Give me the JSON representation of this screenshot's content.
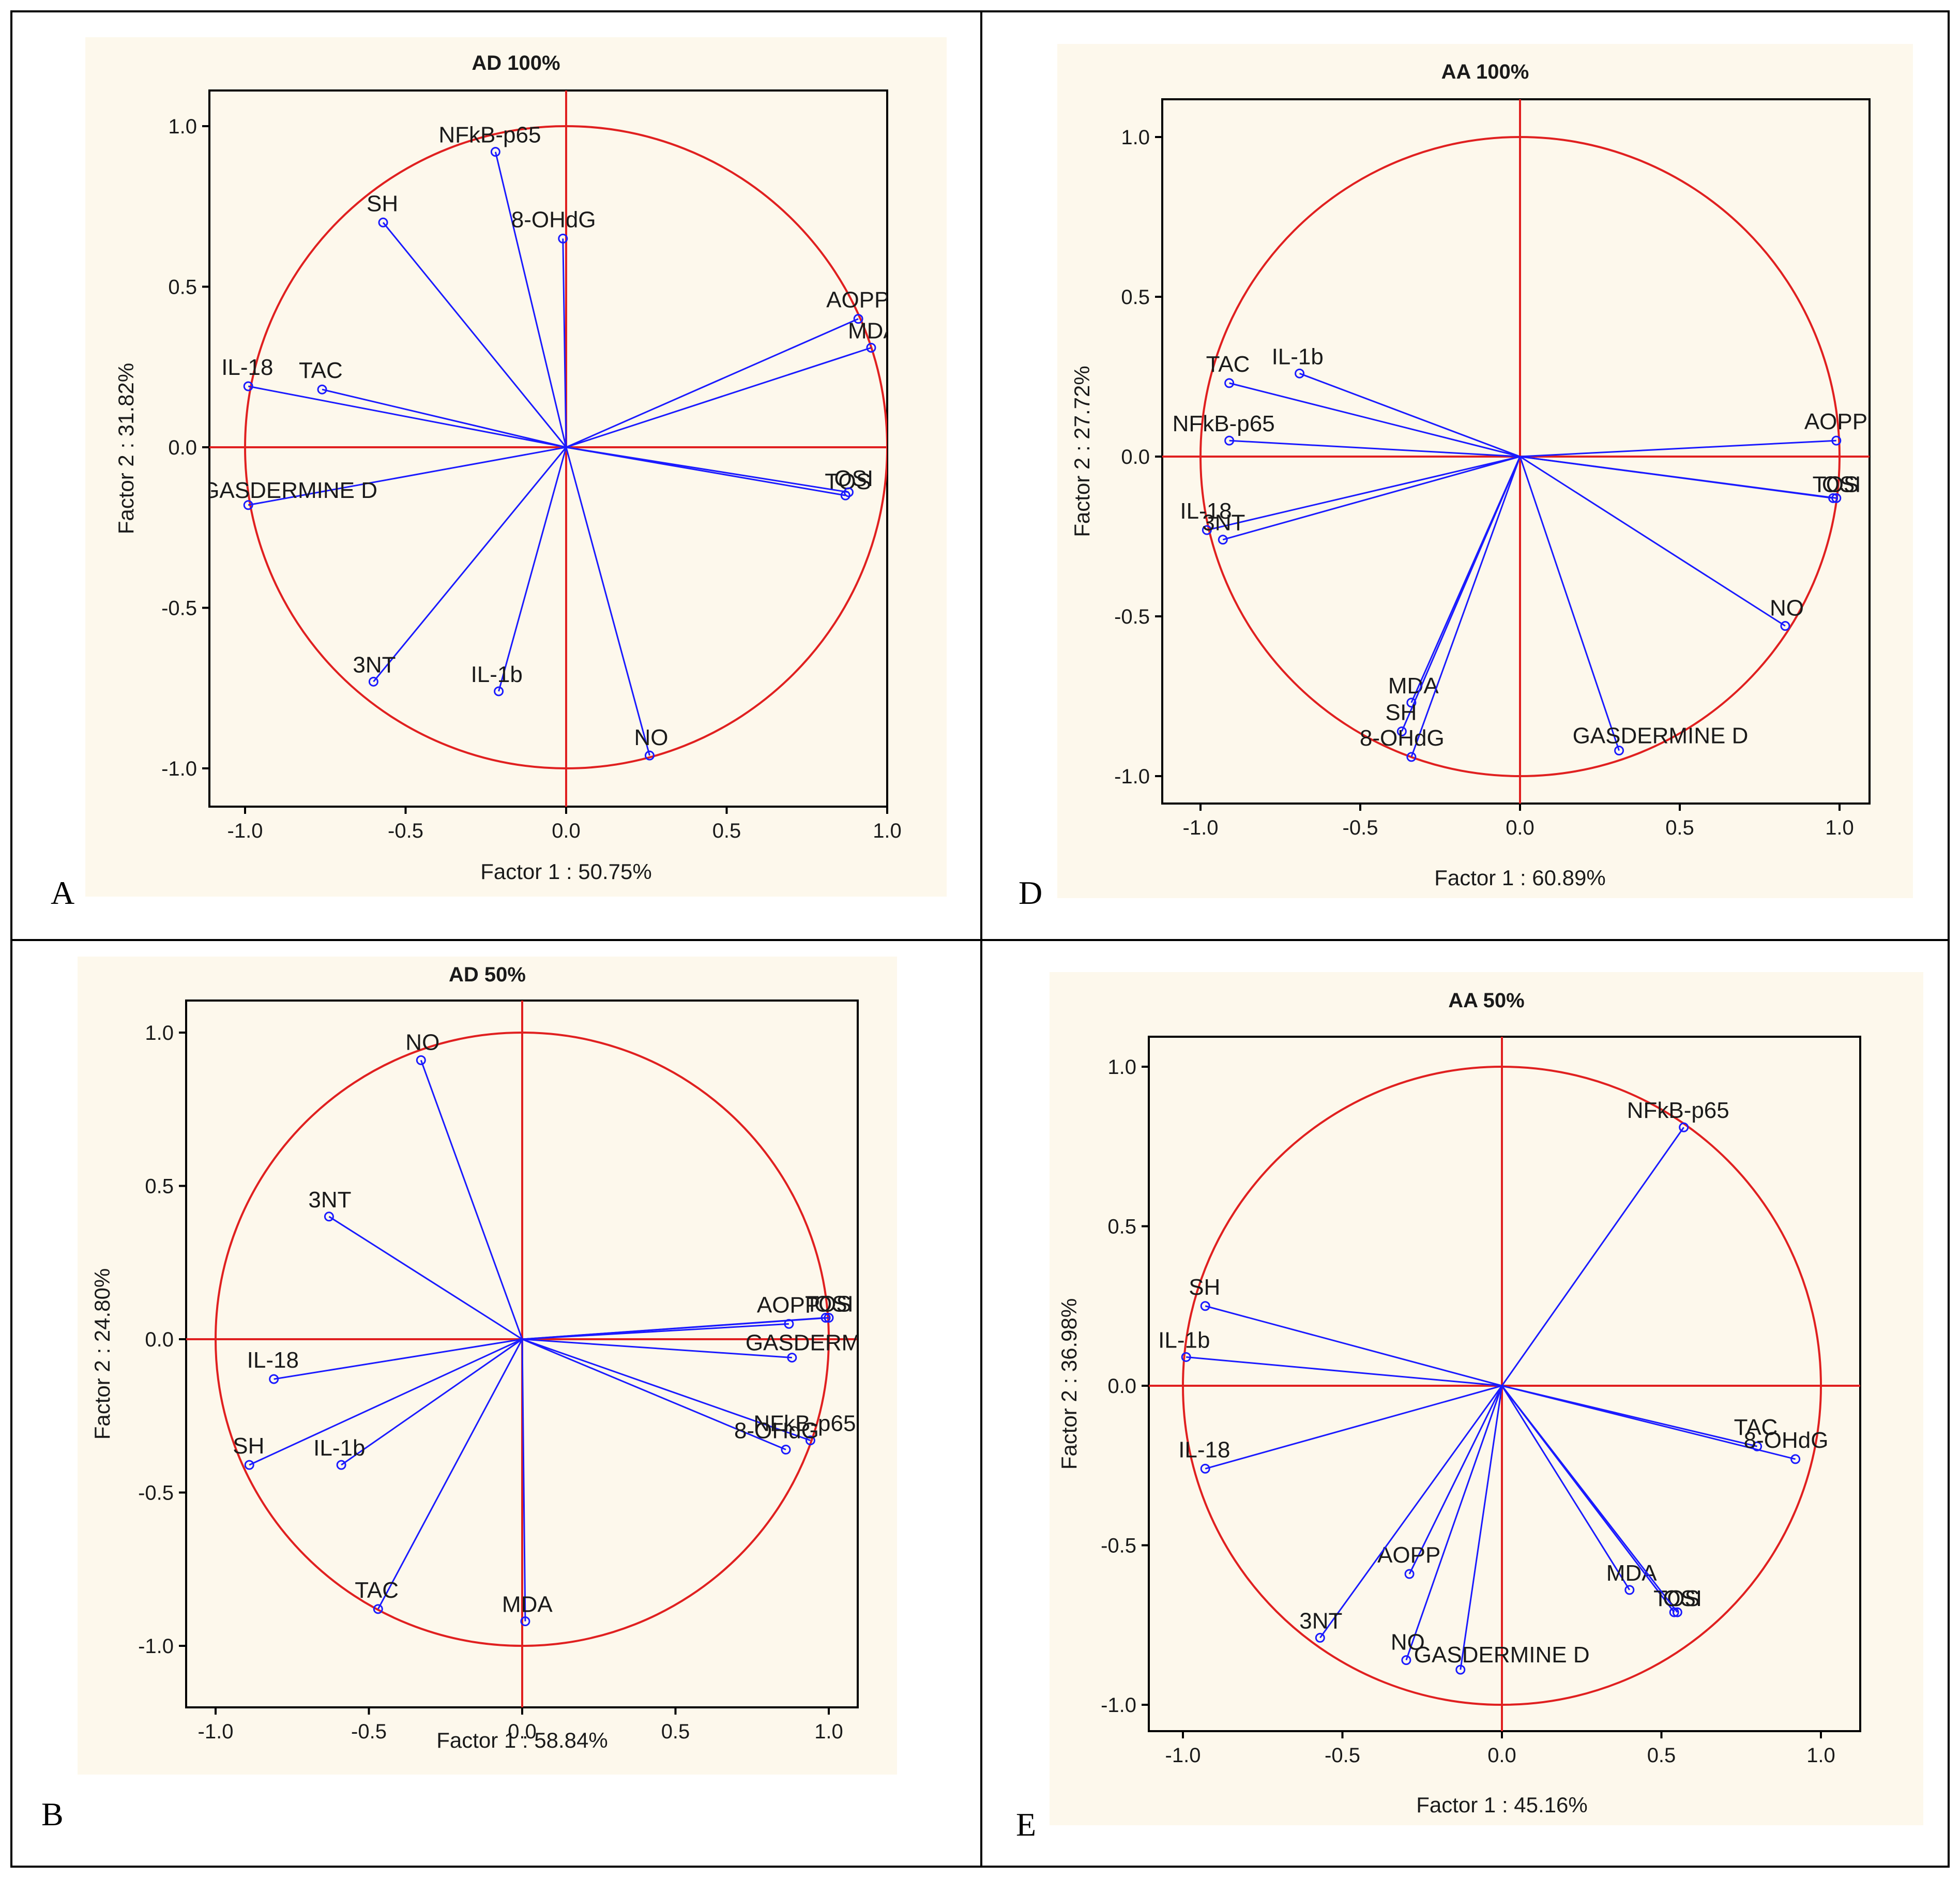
{
  "colors": {
    "background": "#fdf8ec",
    "circle": "#e02020",
    "axes": "#e02020",
    "vector": "#1a1aff",
    "frame": "#000000"
  },
  "chart_data": [
    {
      "panel_letter": "A",
      "type": "scatter",
      "title": "AD 100%",
      "xlabel": "Factor 1 : 50.75%",
      "ylabel": "Factor 2 : 31.82%",
      "xlim": [
        -1.1,
        1.1
      ],
      "ylim": [
        -1.1,
        1.1
      ],
      "x_ticks": [
        -1.0,
        -0.5,
        0.0,
        0.5,
        1.0
      ],
      "x_tick_labels": [
        "-1.0",
        "-0.5",
        "0.0",
        "0.5",
        "1.0"
      ],
      "y_ticks": [
        1.0,
        0.5,
        0.0,
        -0.5,
        -1.0
      ],
      "y_tick_labels": [
        "1.0",
        "0.5",
        "0.0",
        "-0.5",
        "-1.0"
      ],
      "points": [
        {
          "label": "NFkB-p65",
          "x": -0.22,
          "y": 0.92
        },
        {
          "label": "SH",
          "x": -0.57,
          "y": 0.7
        },
        {
          "label": "8-OHdG",
          "x": -0.01,
          "y": 0.65
        },
        {
          "label": "AOPP",
          "x": 0.91,
          "y": 0.4
        },
        {
          "label": "MDA",
          "x": 0.95,
          "y": 0.31
        },
        {
          "label": "IL-18",
          "x": -0.99,
          "y": 0.19
        },
        {
          "label": "TAC",
          "x": -0.76,
          "y": 0.18
        },
        {
          "label": "TOS",
          "x": 0.87,
          "y": -0.15
        },
        {
          "label": "OSI",
          "x": 0.88,
          "y": -0.14
        },
        {
          "label": "GASDERMINE D",
          "x": -0.99,
          "y": -0.18
        },
        {
          "label": "3NT",
          "x": -0.6,
          "y": -0.73
        },
        {
          "label": "IL-1b",
          "x": -0.21,
          "y": -0.76
        },
        {
          "label": "NO",
          "x": 0.26,
          "y": -0.96
        }
      ]
    },
    {
      "panel_letter": "D",
      "type": "scatter",
      "title": "AA 100%",
      "xlabel": "Factor 1 : 60.89%",
      "ylabel": "Factor 2 : 27.72%",
      "xlim": [
        -1.1,
        1.1
      ],
      "ylim": [
        -1.1,
        1.1
      ],
      "x_ticks": [
        -1.0,
        -0.5,
        0.0,
        0.5,
        1.0
      ],
      "x_tick_labels": [
        "-1.0",
        "-0.5",
        "0.0",
        "0.5",
        "1.0"
      ],
      "y_ticks": [
        1.0,
        0.5,
        0.0,
        -0.5,
        -1.0
      ],
      "y_tick_labels": [
        "1.0",
        "0.5",
        "0.0",
        "-0.5",
        "-1.0"
      ],
      "points": [
        {
          "label": "IL-1b",
          "x": -0.69,
          "y": 0.26
        },
        {
          "label": "TAC",
          "x": -0.91,
          "y": 0.23
        },
        {
          "label": "NFkB-p65",
          "x": -0.91,
          "y": 0.05
        },
        {
          "label": "AOPP",
          "x": 0.99,
          "y": 0.05
        },
        {
          "label": "TOS",
          "x": 0.98,
          "y": -0.13
        },
        {
          "label": "OSI",
          "x": 0.99,
          "y": -0.13
        },
        {
          "label": "IL-18",
          "x": -0.98,
          "y": -0.23
        },
        {
          "label": "3NT",
          "x": -0.93,
          "y": -0.26
        },
        {
          "label": "NO",
          "x": 0.83,
          "y": -0.53
        },
        {
          "label": "MDA",
          "x": -0.34,
          "y": -0.77
        },
        {
          "label": "SH",
          "x": -0.37,
          "y": -0.86
        },
        {
          "label": "8-OHdG",
          "x": -0.34,
          "y": -0.94
        },
        {
          "label": "GASDERMINE D",
          "x": 0.31,
          "y": -0.92
        }
      ]
    },
    {
      "panel_letter": "B",
      "type": "scatter",
      "title": "AD 50%",
      "xlabel": "Factor 1 : 58.84%",
      "ylabel": "Factor 2 : 24.80%",
      "xlim": [
        -1.1,
        1.1
      ],
      "ylim": [
        -1.1,
        1.1
      ],
      "x_ticks": [
        -1.0,
        -0.5,
        0.0,
        0.5,
        1.0
      ],
      "x_tick_labels": [
        "-1.0",
        "-0.5",
        "0.0",
        "0.5",
        "1.0"
      ],
      "y_ticks": [
        1.0,
        0.5,
        0.0,
        -0.5,
        -1.0
      ],
      "y_tick_labels": [
        "1.0",
        "0.5",
        "0.0",
        "-0.5",
        "-1.0"
      ],
      "points": [
        {
          "label": "NO",
          "x": -0.33,
          "y": 0.91
        },
        {
          "label": "3NT",
          "x": -0.63,
          "y": 0.4
        },
        {
          "label": "TOS",
          "x": 0.99,
          "y": 0.07
        },
        {
          "label": "OSI",
          "x": 1.0,
          "y": 0.07
        },
        {
          "label": "AOPP",
          "x": 0.87,
          "y": 0.05
        },
        {
          "label": "GASDERMINE D",
          "x": 0.88,
          "y": -0.06
        },
        {
          "label": "IL-18",
          "x": -0.81,
          "y": -0.13
        },
        {
          "label": "NFkB-p65",
          "x": 0.94,
          "y": -0.33
        },
        {
          "label": "8-OHdG",
          "x": 0.86,
          "y": -0.36
        },
        {
          "label": "IL-1b",
          "x": -0.59,
          "y": -0.41
        },
        {
          "label": "SH",
          "x": -0.89,
          "y": -0.41
        },
        {
          "label": "TAC",
          "x": -0.47,
          "y": -0.88
        },
        {
          "label": "MDA",
          "x": 0.01,
          "y": -0.92
        }
      ]
    },
    {
      "panel_letter": "E",
      "type": "scatter",
      "title": "AA 50%",
      "xlabel": "Factor 1 : 45.16%",
      "ylabel": "Factor 2 : 36.98%",
      "xlim": [
        -1.1,
        1.1
      ],
      "ylim": [
        -1.1,
        1.1
      ],
      "x_ticks": [
        -1.0,
        -0.5,
        0.0,
        0.5,
        1.0
      ],
      "x_tick_labels": [
        "-1.0",
        "-0.5",
        "0.0",
        "0.5",
        "1.0"
      ],
      "y_ticks": [
        1.0,
        0.5,
        0.0,
        -0.5,
        -1.0
      ],
      "y_tick_labels": [
        "1.0",
        "0.5",
        "0.0",
        "-0.5",
        "-1.0"
      ],
      "points": [
        {
          "label": "NFkB-p65",
          "x": 0.57,
          "y": 0.81
        },
        {
          "label": "SH",
          "x": -0.93,
          "y": 0.25
        },
        {
          "label": "IL-1b",
          "x": -0.99,
          "y": 0.09
        },
        {
          "label": "TAC",
          "x": 0.8,
          "y": -0.19
        },
        {
          "label": "8-OHdG",
          "x": 0.92,
          "y": -0.23
        },
        {
          "label": "IL-18",
          "x": -0.93,
          "y": -0.26
        },
        {
          "label": "AOPP",
          "x": -0.29,
          "y": -0.59
        },
        {
          "label": "MDA",
          "x": 0.4,
          "y": -0.64
        },
        {
          "label": "TOS",
          "x": 0.54,
          "y": -0.71
        },
        {
          "label": "OSI",
          "x": 0.55,
          "y": -0.71
        },
        {
          "label": "3NT",
          "x": -0.57,
          "y": -0.79
        },
        {
          "label": "NO",
          "x": -0.3,
          "y": -0.86
        },
        {
          "label": "GASDERMINE D",
          "x": -0.13,
          "y": -0.89
        }
      ]
    }
  ]
}
